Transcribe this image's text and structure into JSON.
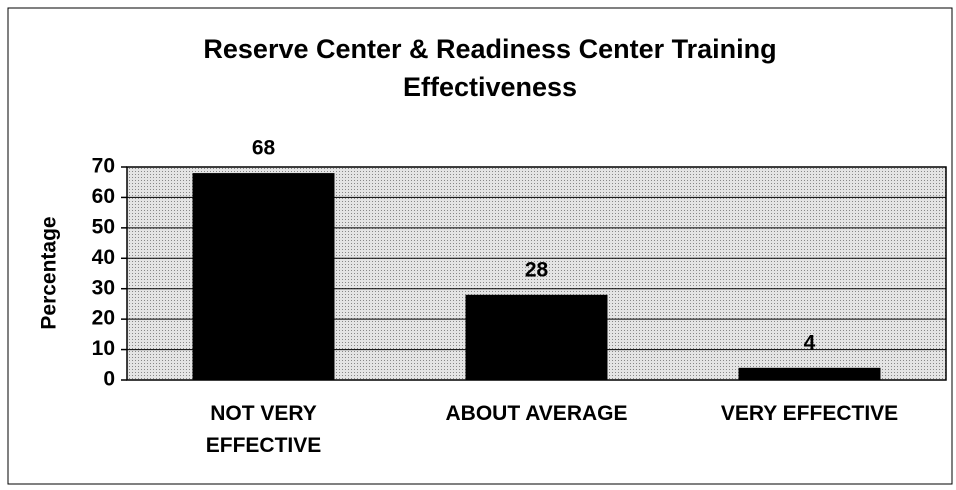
{
  "chart_data": {
    "type": "bar",
    "title": "Reserve Center & Readiness Center Training Effectiveness",
    "y_label": "Percentage",
    "categories": [
      "NOT VERY EFFECTIVE",
      "ABOUT AVERAGE",
      "VERY EFFECTIVE"
    ],
    "values": [
      68,
      28,
      4
    ],
    "color": "#000000",
    "ylim": [
      0,
      70
    ],
    "yticks": [
      0,
      10,
      20,
      30,
      40,
      50,
      60,
      70
    ],
    "grid": true
  }
}
